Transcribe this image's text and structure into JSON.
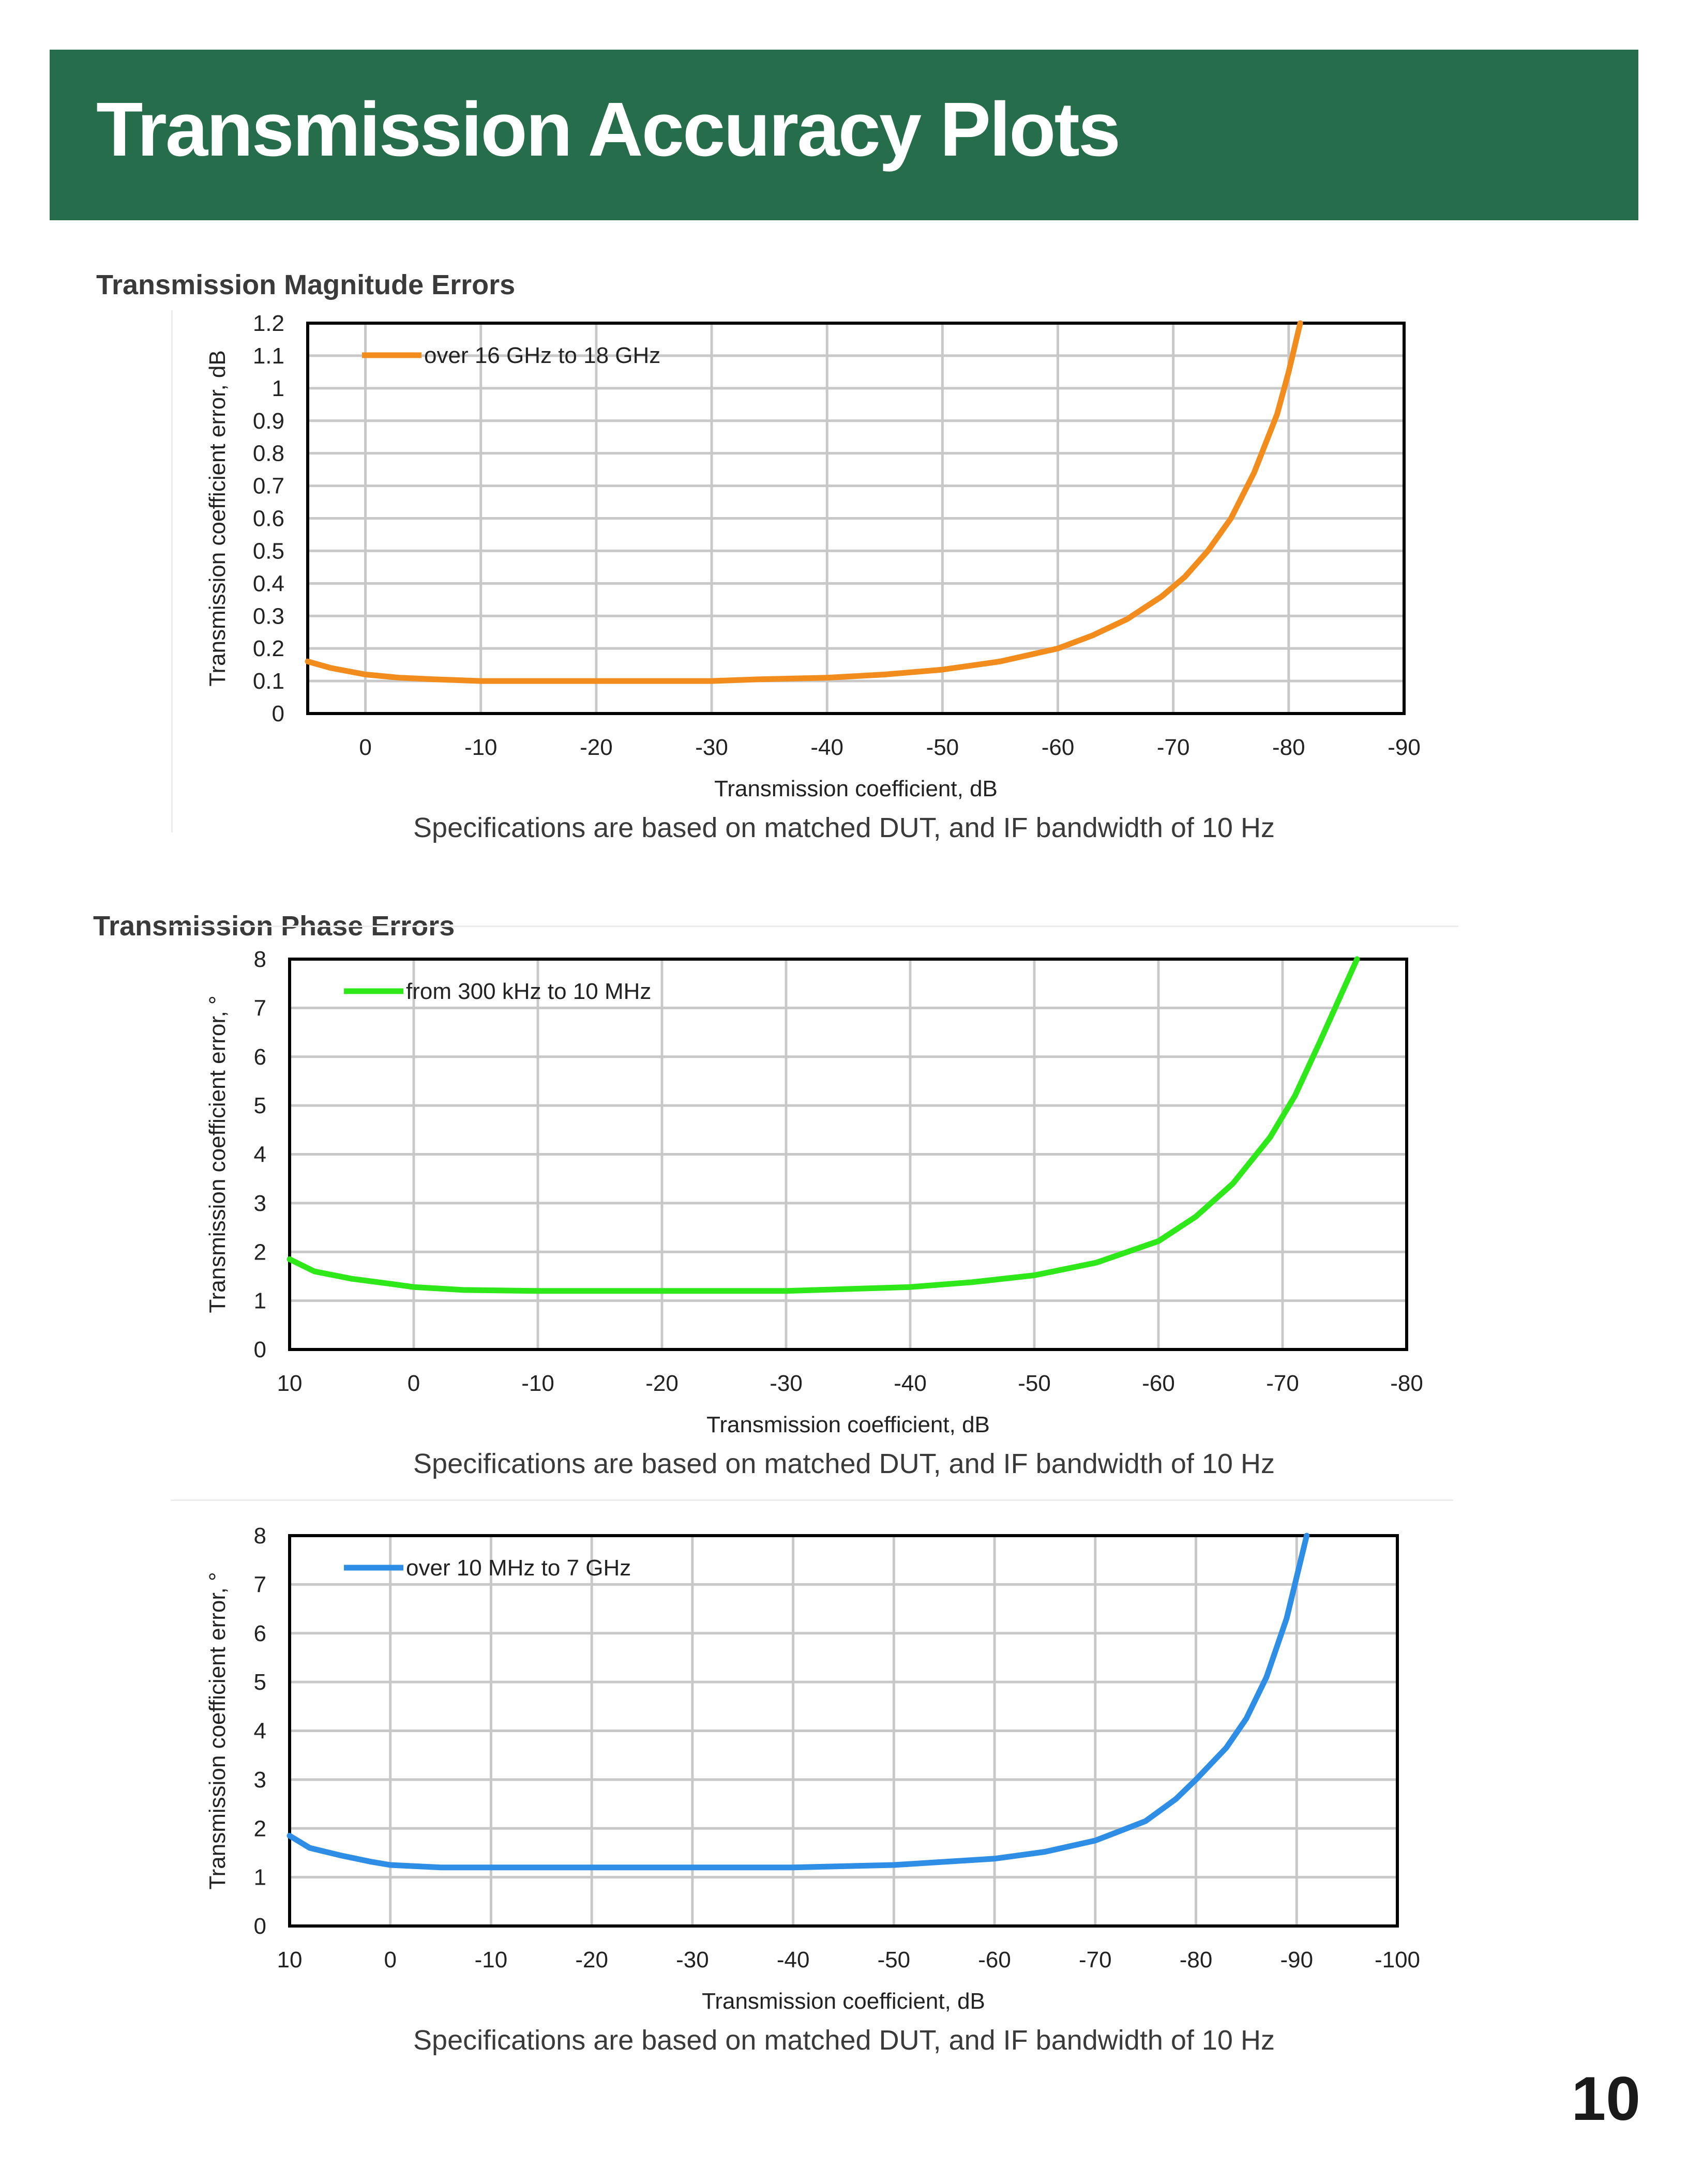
{
  "page": {
    "title": "Transmission Accuracy Plots",
    "page_number": "10",
    "banner_color": "#266e4b"
  },
  "sections": {
    "magnitude_title": "Transmission Magnitude Errors",
    "phase_title": "Transmission Phase Errors"
  },
  "captions": {
    "c1": "Specifications are based on matched DUT, and IF bandwidth of 10 Hz",
    "c2": "Specifications are based on matched DUT, and IF bandwidth of 10 Hz",
    "c3": "Specifications are based on matched DUT, and IF bandwidth of 10 Hz"
  },
  "chart_data": [
    {
      "type": "line",
      "xlabel": "Transmission coefficient, dB",
      "ylabel": "Transmission coefficient error, dB",
      "xlim": [
        5,
        -90
      ],
      "ylim": [
        0,
        1.2
      ],
      "x_ticks": [
        0,
        -10,
        -20,
        -30,
        -40,
        -50,
        -60,
        -70,
        -80,
        -90
      ],
      "y_ticks": [
        0,
        0.1,
        0.2,
        0.3,
        0.4,
        0.5,
        0.6,
        0.7,
        0.8,
        0.9,
        1,
        1.1,
        1.2
      ],
      "y_tick_labels": [
        "0",
        "0.1",
        "0.2",
        "0.3",
        "0.4",
        "0.5",
        "0.6",
        "0.7",
        "0.8",
        "0.9",
        "1",
        "1.1",
        "1.2"
      ],
      "grid": true,
      "legend_position": "top-left",
      "series": [
        {
          "name": "over 16 GHz to 18 GHz",
          "color": "#f28c1c",
          "x": [
            5,
            3,
            0,
            -3,
            -6,
            -10,
            -20,
            -30,
            -34,
            -40,
            -45,
            -50,
            -55,
            -60,
            -63,
            -66,
            -69,
            -71,
            -73,
            -75,
            -77,
            -79,
            -80,
            -81
          ],
          "y": [
            0.16,
            0.14,
            0.12,
            0.11,
            0.105,
            0.1,
            0.1,
            0.1,
            0.105,
            0.11,
            0.12,
            0.135,
            0.16,
            0.2,
            0.24,
            0.29,
            0.36,
            0.42,
            0.5,
            0.6,
            0.74,
            0.92,
            1.05,
            1.2
          ]
        }
      ]
    },
    {
      "type": "line",
      "xlabel": "Transmission coefficient, dB",
      "ylabel": "Transmission coefficient error, °",
      "xlim": [
        10,
        -80
      ],
      "ylim": [
        0,
        8
      ],
      "x_ticks": [
        10,
        0,
        -10,
        -20,
        -30,
        -40,
        -50,
        -60,
        -70,
        -80
      ],
      "y_ticks": [
        0,
        1,
        2,
        3,
        4,
        5,
        6,
        7,
        8
      ],
      "y_tick_labels": [
        "0",
        "1",
        "2",
        "3",
        "4",
        "5",
        "6",
        "7",
        "8"
      ],
      "grid": true,
      "legend_position": "top-left",
      "series": [
        {
          "name": "from 300 kHz to 10 MHz",
          "color": "#2ee81a",
          "x": [
            10,
            8,
            5,
            2,
            0,
            -4,
            -10,
            -20,
            -30,
            -40,
            -45,
            -50,
            -55,
            -60,
            -63,
            -66,
            -69,
            -71,
            -73,
            -74.5,
            -76
          ],
          "y": [
            1.85,
            1.6,
            1.45,
            1.35,
            1.28,
            1.22,
            1.2,
            1.2,
            1.2,
            1.28,
            1.38,
            1.52,
            1.78,
            2.22,
            2.72,
            3.4,
            4.35,
            5.2,
            6.3,
            7.15,
            8
          ]
        }
      ]
    },
    {
      "type": "line",
      "xlabel": "Transmission coefficient, dB",
      "ylabel": "Transmission coefficient error, °",
      "xlim": [
        10,
        -100
      ],
      "ylim": [
        0,
        8
      ],
      "x_ticks": [
        10,
        0,
        -10,
        -20,
        -30,
        -40,
        -50,
        -60,
        -70,
        -80,
        -90,
        -100
      ],
      "y_ticks": [
        0,
        1,
        2,
        3,
        4,
        5,
        6,
        7,
        8
      ],
      "y_tick_labels": [
        "0",
        "1",
        "2",
        "3",
        "4",
        "5",
        "6",
        "7",
        "8"
      ],
      "grid": true,
      "legend_position": "top-left",
      "series": [
        {
          "name": "over 10 MHz to 7 GHz",
          "color": "#2e8ee6",
          "x": [
            10,
            8,
            5,
            2,
            0,
            -5,
            -10,
            -20,
            -30,
            -40,
            -50,
            -60,
            -65,
            -70,
            -75,
            -78,
            -80,
            -83,
            -85,
            -87,
            -89,
            -91
          ],
          "y": [
            1.85,
            1.6,
            1.45,
            1.32,
            1.25,
            1.2,
            1.2,
            1.2,
            1.2,
            1.2,
            1.25,
            1.38,
            1.52,
            1.75,
            2.15,
            2.6,
            3.0,
            3.65,
            4.25,
            5.1,
            6.3,
            8.0
          ]
        }
      ]
    }
  ]
}
